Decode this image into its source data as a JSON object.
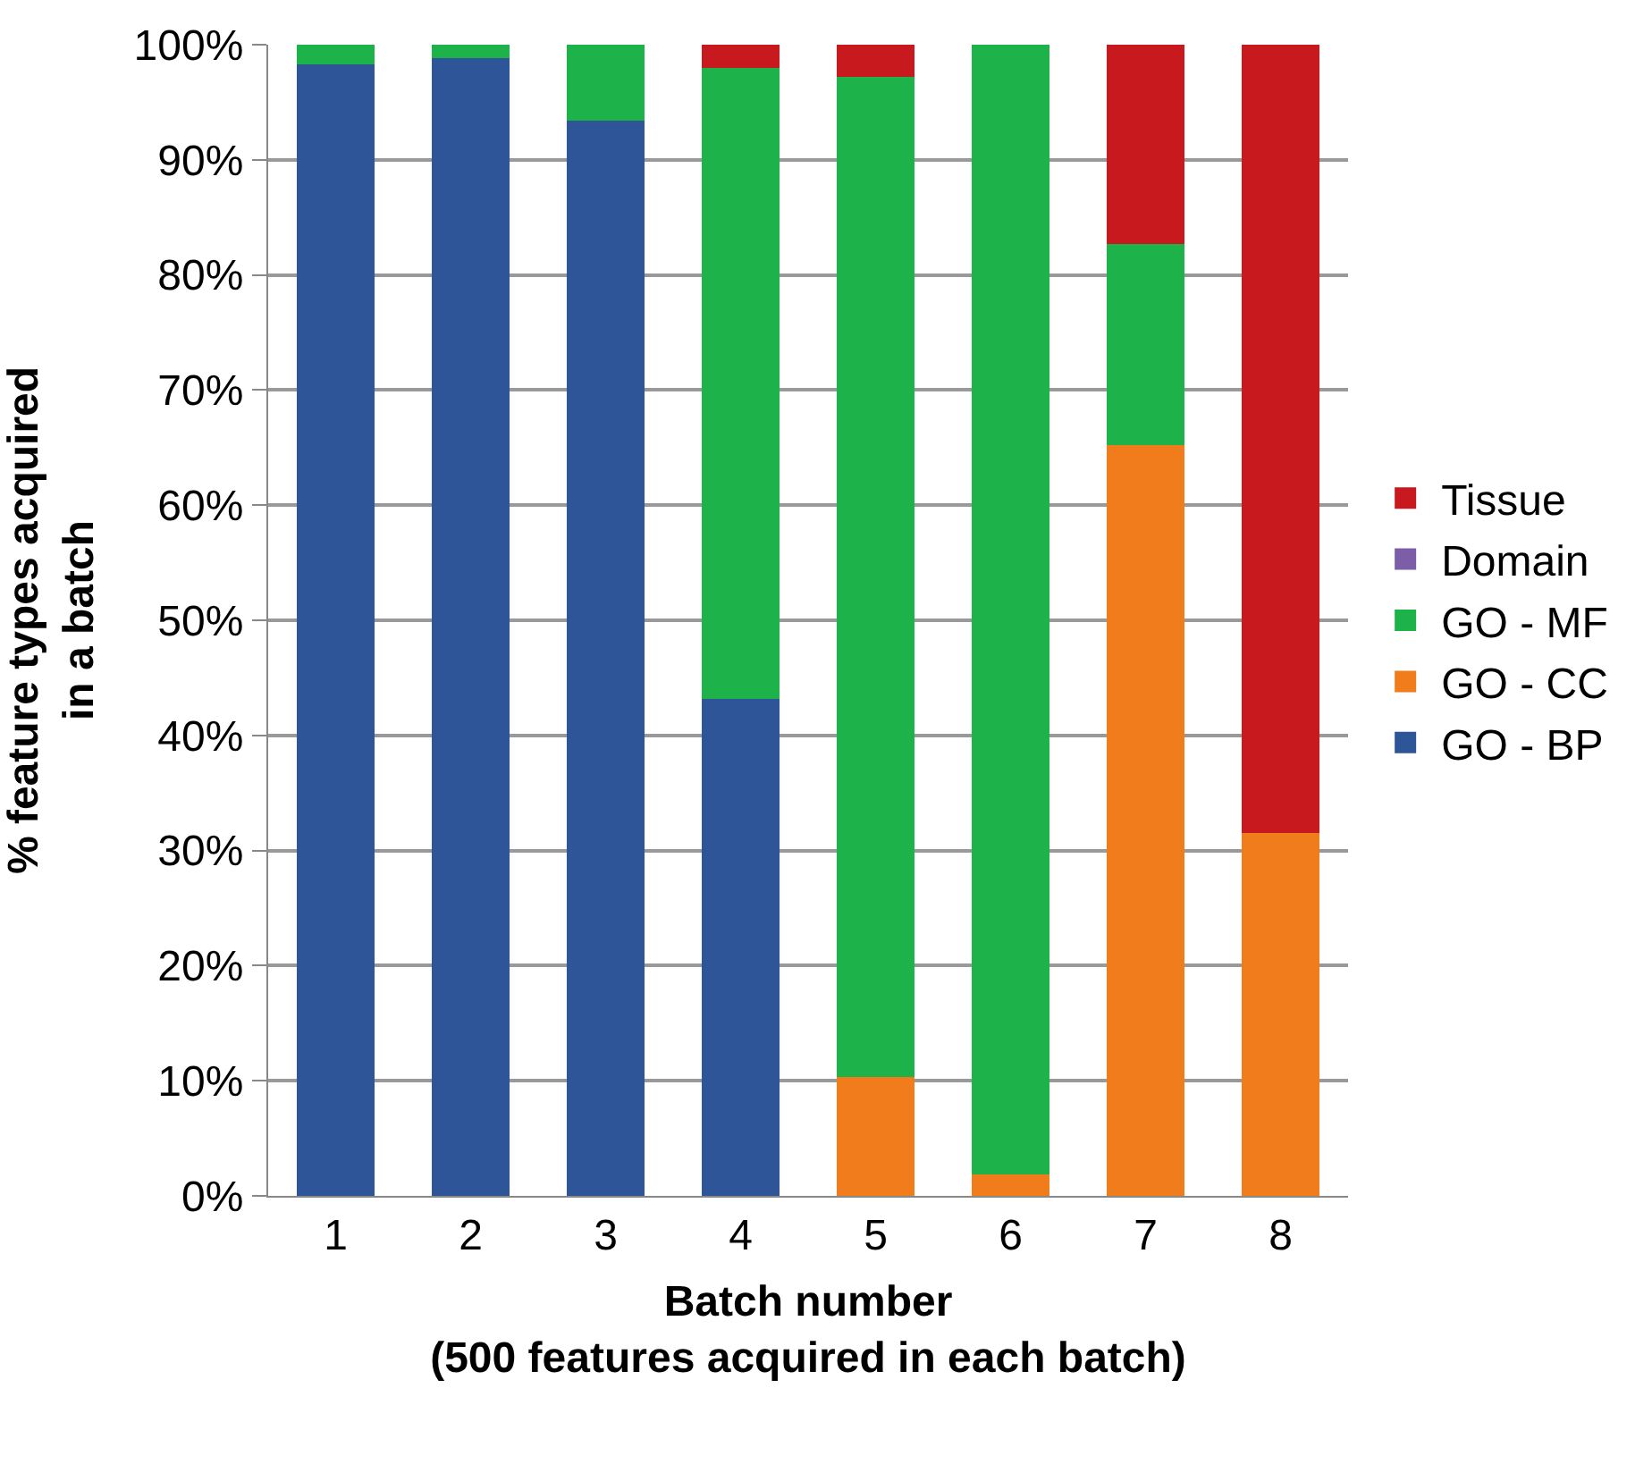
{
  "chart_data": {
    "type": "bar",
    "stacked": true,
    "xlabel": "Batch number\n(500 features acquired in each batch)",
    "ylabel": "% feature types acquired\nin a batch",
    "categories": [
      "1",
      "2",
      "3",
      "4",
      "5",
      "6",
      "7",
      "8"
    ],
    "series": [
      {
        "name": "GO - BP",
        "color": "#2e5597",
        "values": [
          98.3,
          98.8,
          93.4,
          43.2,
          0,
          0,
          0,
          0
        ]
      },
      {
        "name": "GO - CC",
        "color": "#f07c1c",
        "values": [
          0,
          0,
          0,
          0,
          10.3,
          1.9,
          65.2,
          31.5
        ]
      },
      {
        "name": "GO - MF",
        "color": "#1db34a",
        "values": [
          1.7,
          1.2,
          6.6,
          54.8,
          86.9,
          98.1,
          17.5,
          0
        ]
      },
      {
        "name": "Domain",
        "color": "#7b5ea7",
        "values": [
          0,
          0,
          0,
          0,
          0,
          0,
          0,
          0
        ]
      },
      {
        "name": "Tissue",
        "color": "#c8191e",
        "values": [
          0,
          0,
          0,
          2,
          2.8,
          0,
          17.3,
          68.5
        ]
      }
    ],
    "ylim": [
      0,
      100
    ],
    "yticks": [
      {
        "value": 0,
        "label": "0%"
      },
      {
        "value": 10,
        "label": "10%"
      },
      {
        "value": 20,
        "label": "20%"
      },
      {
        "value": 30,
        "label": "30%"
      },
      {
        "value": 40,
        "label": "40%"
      },
      {
        "value": 50,
        "label": "50%"
      },
      {
        "value": 60,
        "label": "60%"
      },
      {
        "value": 70,
        "label": "70%"
      },
      {
        "value": 80,
        "label": "80%"
      },
      {
        "value": 90,
        "label": "90%"
      },
      {
        "value": 100,
        "label": "100%"
      }
    ],
    "grid": "y",
    "legend": "right"
  }
}
